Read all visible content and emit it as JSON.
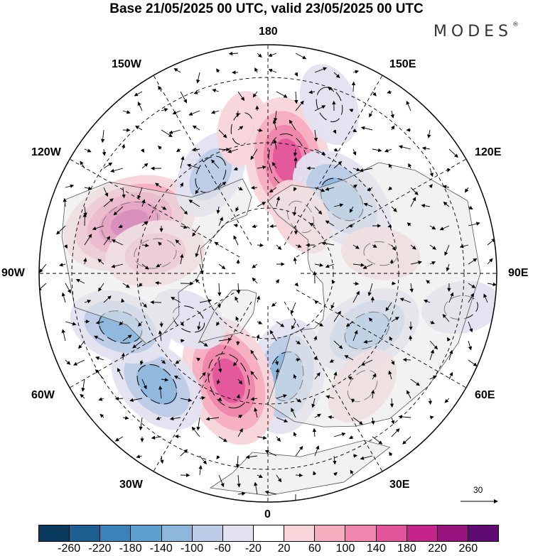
{
  "title": "Base 21/05/2025 00 UTC, valid 23/05/2025 00 UTC",
  "brand": "MODES",
  "brand_mark": "®",
  "longitude_labels": {
    "top": "180",
    "bottom": "0",
    "left": "90W",
    "right": "90E",
    "upper_left_1": "150W",
    "upper_left_2": "120W",
    "lower_left_1": "60W",
    "lower_left_2": "30W",
    "upper_right_1": "150E",
    "upper_right_2": "120E",
    "lower_right_1": "60E",
    "lower_right_2": "30E"
  },
  "wind_reference_label": "30",
  "colorbar": {
    "colors": [
      "#0a3b5e",
      "#1d5f90",
      "#3a83b8",
      "#5d9fcd",
      "#8eb7dc",
      "#bccbe6",
      "#e3e2f0",
      "#ffffff",
      "#f8d5da",
      "#f5aec0",
      "#ef86ad",
      "#e3559b",
      "#c5248a",
      "#97137d",
      "#5e0b74"
    ],
    "ticks": [
      "-260",
      "-220",
      "-180",
      "-140",
      "-100",
      "-60",
      "-20",
      "20",
      "60",
      "100",
      "140",
      "180",
      "220",
      "260"
    ]
  },
  "anomalies": [
    {
      "lon": -110,
      "lat": 45,
      "value": 200
    },
    {
      "lon": -100,
      "lat": 55,
      "value": 110
    },
    {
      "lon": -150,
      "lat": 55,
      "value": -90
    },
    {
      "lon": -170,
      "lat": 45,
      "value": 50
    },
    {
      "lon": 170,
      "lat": 55,
      "value": 180
    },
    {
      "lon": 160,
      "lat": 35,
      "value": -70
    },
    {
      "lon": 135,
      "lat": 58,
      "value": -150
    },
    {
      "lon": 100,
      "lat": 55,
      "value": 60
    },
    {
      "lon": 60,
      "lat": 55,
      "value": -140
    },
    {
      "lon": 40,
      "lat": 45,
      "value": 70
    },
    {
      "lon": 10,
      "lat": 58,
      "value": -150
    },
    {
      "lon": -20,
      "lat": 55,
      "value": 190
    },
    {
      "lon": -45,
      "lat": 42,
      "value": -130
    },
    {
      "lon": -70,
      "lat": 42,
      "value": -120
    },
    {
      "lon": -60,
      "lat": 62,
      "value": -60
    },
    {
      "lon": 80,
      "lat": 30,
      "value": -60
    },
    {
      "lon": 150,
      "lat": 70,
      "value": 60
    }
  ]
}
